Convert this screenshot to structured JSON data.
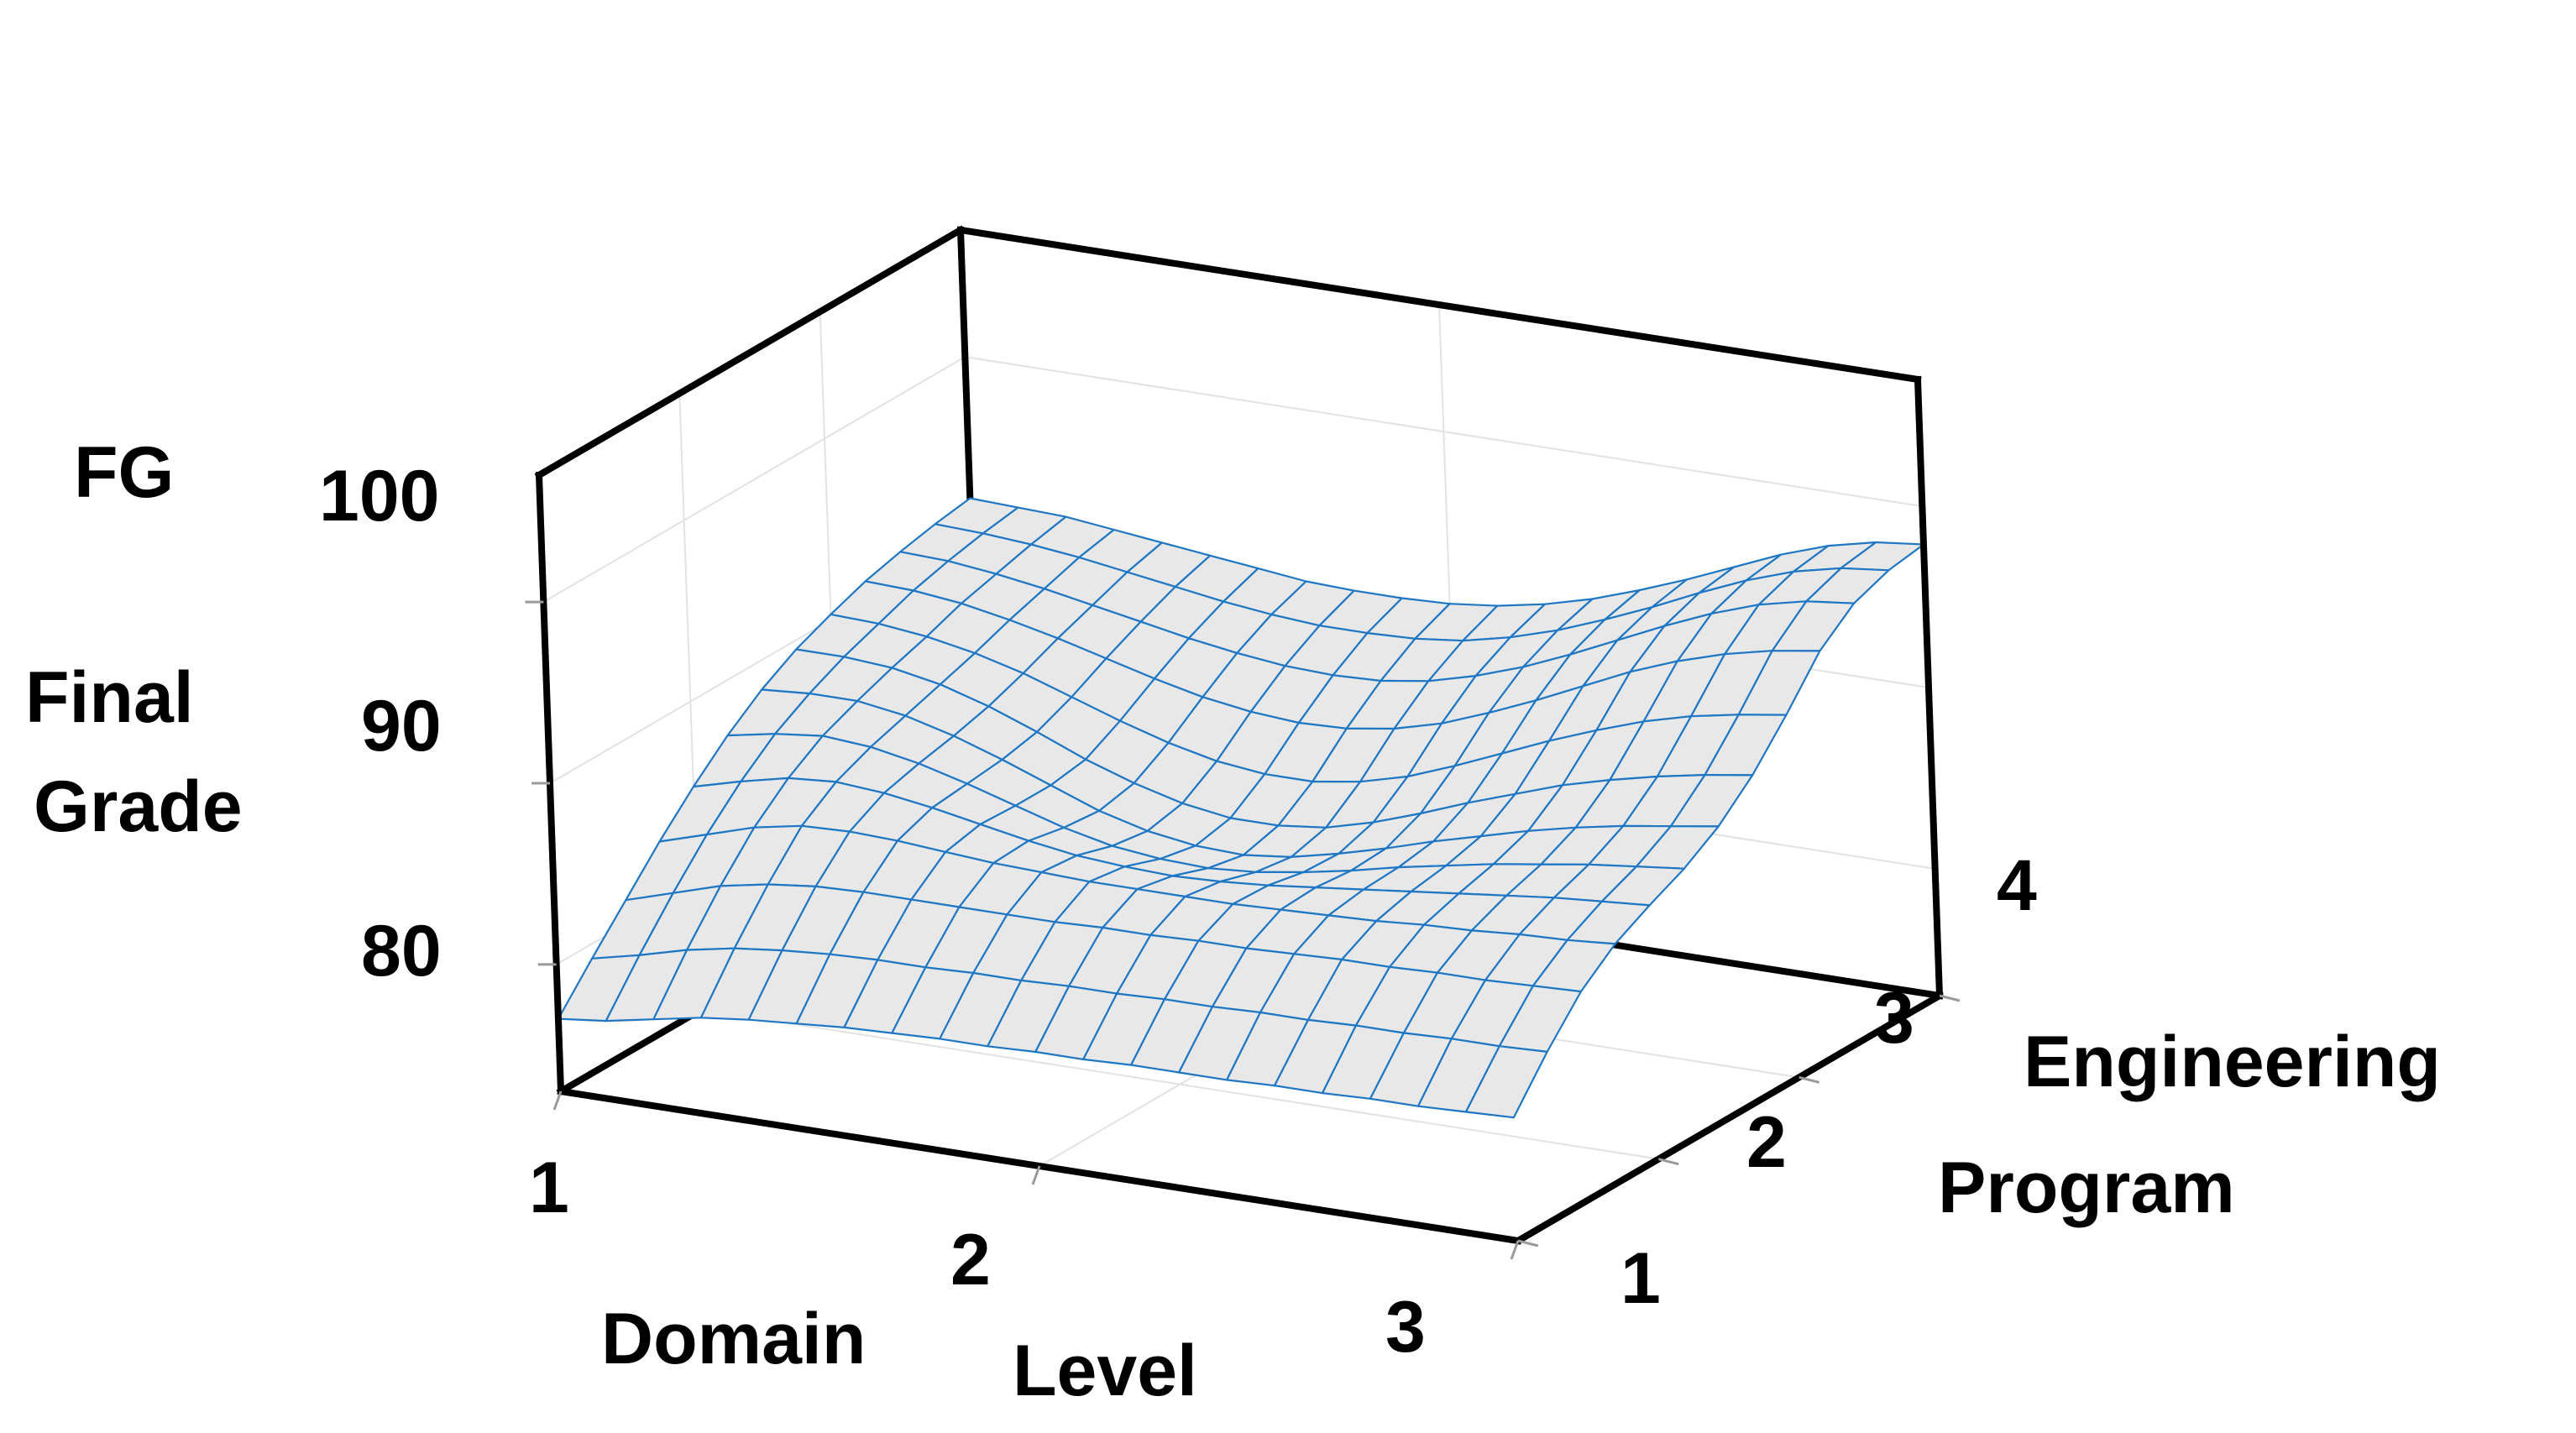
{
  "chart_data": {
    "type": "surface3d",
    "z_axis": {
      "title_top": "FG",
      "title_lines": [
        "Final",
        "Grade"
      ],
      "ticks": [
        "100",
        "90",
        "80"
      ],
      "ticks_numeric": [
        100,
        90,
        80
      ],
      "range": [
        73,
        107
      ]
    },
    "x_axis": {
      "title_words": [
        "Domain",
        "Level"
      ],
      "ticks": [
        "1",
        "2",
        "3"
      ],
      "ticks_numeric": [
        1,
        2,
        3
      ],
      "range": [
        1,
        3
      ]
    },
    "y_axis": {
      "title_lines": [
        "Engineering",
        "Program"
      ],
      "ticks": [
        "1",
        "2",
        "3",
        "4"
      ],
      "ticks_numeric": [
        1,
        2,
        3,
        4
      ],
      "range": [
        1,
        4
      ]
    },
    "surface": {
      "color": "#1f77c4",
      "fill": "#e8e8e8",
      "domain_level": [
        1.0,
        1.1,
        1.2,
        1.3,
        1.4,
        1.5,
        1.6,
        1.7,
        1.8,
        1.9,
        2.0,
        2.1,
        2.2,
        2.3,
        2.4,
        2.5,
        2.6,
        2.7,
        2.8,
        2.9,
        3.0
      ],
      "engineering_program": [
        1.0,
        1.25,
        1.5,
        1.75,
        2.0,
        2.25,
        2.5,
        2.75,
        3.0,
        3.25,
        3.5,
        3.75,
        4.0
      ],
      "final_grade": [
        [
          77.0,
          77.3,
          77.8,
          78.3,
          78.6,
          78.8,
          79.0,
          79.1,
          79.2,
          79.2,
          79.3,
          79.3,
          79.4,
          79.4,
          79.4,
          79.5,
          79.5,
          79.6,
          79.6,
          79.7,
          79.8
        ],
        [
          79.2,
          79.8,
          80.5,
          81.0,
          81.3,
          81.5,
          81.6,
          81.6,
          81.7,
          81.7,
          81.8,
          81.8,
          81.9,
          81.9,
          82.0,
          82.0,
          82.1,
          82.1,
          82.2,
          82.2,
          82.3
        ],
        [
          81.3,
          82.1,
          82.9,
          83.4,
          83.7,
          83.8,
          83.8,
          83.8,
          83.8,
          83.8,
          83.9,
          83.9,
          84.0,
          84.0,
          84.1,
          84.2,
          84.2,
          84.3,
          84.3,
          84.4,
          84.5
        ],
        [
          83.4,
          84.2,
          85.0,
          85.5,
          85.6,
          85.5,
          85.3,
          85.1,
          85.0,
          84.9,
          84.9,
          84.9,
          84.9,
          85.0,
          85.1,
          85.2,
          85.4,
          85.5,
          85.7,
          85.8,
          86.0
        ],
        [
          85.3,
          86.0,
          86.6,
          86.8,
          86.6,
          86.2,
          85.7,
          85.2,
          84.8,
          84.6,
          84.5,
          84.6,
          84.8,
          85.1,
          85.4,
          85.7,
          86.0,
          86.3,
          86.6,
          86.8,
          87.0
        ],
        [
          87.0,
          87.5,
          87.8,
          87.6,
          87.1,
          86.4,
          85.6,
          84.8,
          84.2,
          83.9,
          83.8,
          84.0,
          84.4,
          84.9,
          85.5,
          86.0,
          86.5,
          86.9,
          87.3,
          87.6,
          87.9
        ],
        [
          88.4,
          88.6,
          88.6,
          88.2,
          87.5,
          86.6,
          85.6,
          84.6,
          83.9,
          83.5,
          83.4,
          83.7,
          84.3,
          85.0,
          85.8,
          86.5,
          87.2,
          87.8,
          88.3,
          88.7,
          89.1
        ],
        [
          89.5,
          89.5,
          89.3,
          88.8,
          88.0,
          87.0,
          85.9,
          85.0,
          84.3,
          83.9,
          83.9,
          84.2,
          84.9,
          85.8,
          86.8,
          87.7,
          88.6,
          89.3,
          89.9,
          90.4,
          90.8
        ],
        [
          90.3,
          90.2,
          89.9,
          89.4,
          88.7,
          87.8,
          86.9,
          86.1,
          85.5,
          85.2,
          85.2,
          85.6,
          86.3,
          87.3,
          88.4,
          89.5,
          90.5,
          91.4,
          92.1,
          92.6,
          93.0
        ],
        [
          91.0,
          90.9,
          90.6,
          90.1,
          89.5,
          88.8,
          88.1,
          87.5,
          87.1,
          86.9,
          87.0,
          87.4,
          88.1,
          89.1,
          90.2,
          91.4,
          92.6,
          93.6,
          94.4,
          95.0,
          95.4
        ],
        [
          91.5,
          91.4,
          91.1,
          90.7,
          90.2,
          89.7,
          89.2,
          88.8,
          88.5,
          88.4,
          88.5,
          88.9,
          89.6,
          90.5,
          91.6,
          92.8,
          94.0,
          95.1,
          96.0,
          96.6,
          96.9
        ],
        [
          91.9,
          91.8,
          91.6,
          91.3,
          90.9,
          90.5,
          90.1,
          89.8,
          89.6,
          89.6,
          89.7,
          90.0,
          90.6,
          91.4,
          92.4,
          93.5,
          94.7,
          95.8,
          96.7,
          97.3,
          97.6
        ],
        [
          92.2,
          92.1,
          92.0,
          91.7,
          91.4,
          91.1,
          90.8,
          90.5,
          90.4,
          90.4,
          90.5,
          90.8,
          91.3,
          92.0,
          92.9,
          93.9,
          95.0,
          96.1,
          97.0,
          97.6,
          97.9
        ]
      ]
    }
  }
}
